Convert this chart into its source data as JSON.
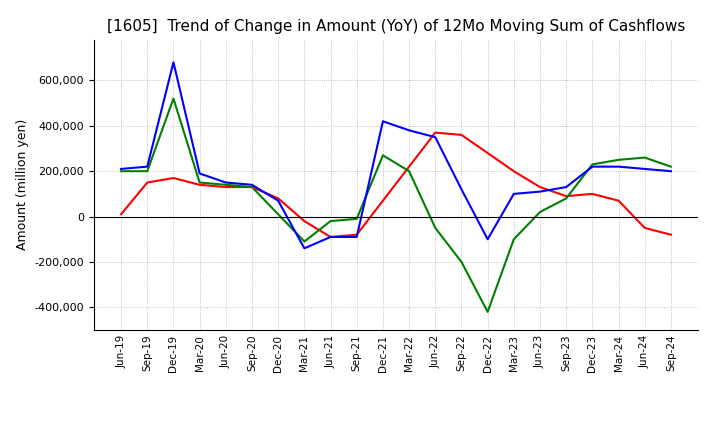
{
  "title": "[1605]  Trend of Change in Amount (YoY) of 12Mo Moving Sum of Cashflows",
  "ylabel": "Amount (million yen)",
  "x_labels": [
    "Jun-19",
    "Sep-19",
    "Dec-19",
    "Mar-20",
    "Jun-20",
    "Sep-20",
    "Dec-20",
    "Mar-21",
    "Jun-21",
    "Sep-21",
    "Dec-21",
    "Mar-22",
    "Jun-22",
    "Sep-22",
    "Dec-22",
    "Mar-23",
    "Jun-23",
    "Sep-23",
    "Dec-23",
    "Mar-24",
    "Jun-24",
    "Sep-24"
  ],
  "operating": [
    10000,
    150000,
    170000,
    140000,
    130000,
    130000,
    80000,
    -20000,
    -90000,
    -80000,
    70000,
    220000,
    370000,
    360000,
    280000,
    200000,
    130000,
    90000,
    100000,
    70000,
    -50000,
    -80000
  ],
  "investing": [
    200000,
    200000,
    520000,
    150000,
    140000,
    130000,
    10000,
    -110000,
    -20000,
    -10000,
    270000,
    200000,
    -50000,
    -200000,
    -420000,
    -100000,
    20000,
    80000,
    230000,
    250000,
    260000,
    220000
  ],
  "free": [
    210000,
    220000,
    680000,
    190000,
    150000,
    140000,
    70000,
    -140000,
    -90000,
    -90000,
    420000,
    380000,
    350000,
    120000,
    -100000,
    100000,
    110000,
    130000,
    220000,
    220000,
    210000,
    200000
  ],
  "operating_color": "#ff0000",
  "investing_color": "#008000",
  "free_color": "#0000ff",
  "ylim": [
    -500000,
    780000
  ],
  "yticks": [
    -400000,
    -200000,
    0,
    200000,
    400000,
    600000
  ],
  "grid_color": "#b0b0b0",
  "background_color": "#ffffff",
  "title_fontsize": 11
}
